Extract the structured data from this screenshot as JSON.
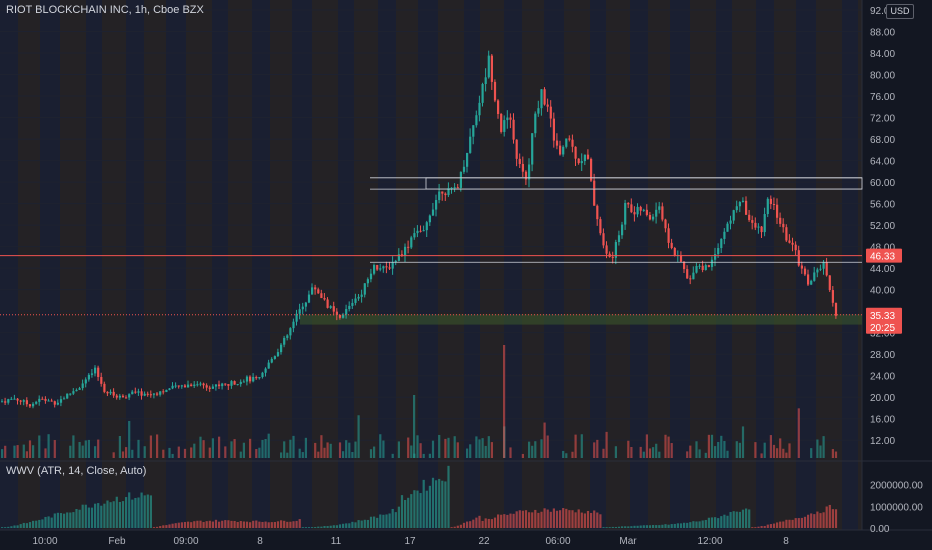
{
  "header": {
    "symbol_title": "RIOT BLOCKCHAIN INC, 1h, Cboe BZX",
    "currency": "USD"
  },
  "indicator": {
    "title": "WWV (ATR, 14, Close, Auto)"
  },
  "colors": {
    "background": "#131722",
    "up": "#26a69a",
    "down": "#ef5350",
    "grid": "#1e2230",
    "stripe_a": "#2a3350",
    "stripe_b": "#4a3a2c",
    "level": "#d1d4dc"
  },
  "chart_data": {
    "type": "candlestick",
    "price_axis": {
      "ylim": [
        10,
        92
      ],
      "ticks": [
        "92.00",
        "88.00",
        "84.00",
        "80.00",
        "76.00",
        "72.00",
        "68.00",
        "64.00",
        "60.00",
        "56.00",
        "52.00",
        "48.00",
        "44.00",
        "40.00",
        "36.00",
        "32.00",
        "28.00",
        "24.00",
        "20.00",
        "16.00",
        "12.00"
      ]
    },
    "time_axis": [
      "10:00",
      "Feb",
      "09:00",
      "8",
      "11",
      "17",
      "22",
      "06:00",
      "Mar",
      "12:00",
      "8"
    ],
    "ohlc_points": [
      [
        0,
        19.2
      ],
      [
        14,
        19.8
      ],
      [
        28,
        18.6
      ],
      [
        40,
        19.6
      ],
      [
        55,
        19.0
      ],
      [
        68,
        20.6
      ],
      [
        80,
        22.2
      ],
      [
        94,
        25.0
      ],
      [
        104,
        21.0
      ],
      [
        118,
        20.0
      ],
      [
        132,
        20.8
      ],
      [
        148,
        20.5
      ],
      [
        162,
        21.2
      ],
      [
        178,
        22.0
      ],
      [
        195,
        22.6
      ],
      [
        210,
        22.0
      ],
      [
        228,
        22.4
      ],
      [
        244,
        23.4
      ],
      [
        258,
        23.2
      ],
      [
        270,
        27.0
      ],
      [
        285,
        31.0
      ],
      [
        298,
        36.0
      ],
      [
        313,
        40.6
      ],
      [
        328,
        36.8
      ],
      [
        338,
        34.2
      ],
      [
        352,
        38.0
      ],
      [
        362,
        40.0
      ],
      [
        372,
        44.6
      ],
      [
        384,
        43.6
      ],
      [
        396,
        46.0
      ],
      [
        406,
        48.0
      ],
      [
        414,
        51.4
      ],
      [
        422,
        50.0
      ],
      [
        430,
        55.0
      ],
      [
        440,
        58.8
      ],
      [
        450,
        58.0
      ],
      [
        458,
        60.0
      ],
      [
        466,
        66.0
      ],
      [
        474,
        72.0
      ],
      [
        482,
        78.0
      ],
      [
        488,
        83.0
      ],
      [
        494,
        76.0
      ],
      [
        500,
        70.0
      ],
      [
        508,
        72.0
      ],
      [
        514,
        66.0
      ],
      [
        520,
        62.0
      ],
      [
        526,
        60.0
      ],
      [
        532,
        70.0
      ],
      [
        540,
        77.0
      ],
      [
        546,
        74.0
      ],
      [
        552,
        69.0
      ],
      [
        560,
        64.0
      ],
      [
        566,
        69.0
      ],
      [
        572,
        66.0
      ],
      [
        578,
        64.0
      ],
      [
        586,
        65.0
      ],
      [
        592,
        57.0
      ],
      [
        598,
        52.0
      ],
      [
        604,
        46.5
      ],
      [
        612,
        46.0
      ],
      [
        620,
        52.0
      ],
      [
        626,
        57.0
      ],
      [
        632,
        54.0
      ],
      [
        640,
        55.0
      ],
      [
        648,
        53.0
      ],
      [
        658,
        56.0
      ],
      [
        664,
        51.0
      ],
      [
        672,
        47.0
      ],
      [
        680,
        45.0
      ],
      [
        688,
        41.0
      ],
      [
        694,
        45.0
      ],
      [
        702,
        44.0
      ],
      [
        708,
        44.5
      ],
      [
        716,
        48.0
      ],
      [
        724,
        51.0
      ],
      [
        732,
        54.0
      ],
      [
        738,
        57.0
      ],
      [
        744,
        55.0
      ],
      [
        750,
        52.0
      ],
      [
        760,
        51.0
      ],
      [
        768,
        57.0
      ],
      [
        776,
        54.0
      ],
      [
        784,
        50.0
      ],
      [
        792,
        48.0
      ],
      [
        800,
        44.0
      ],
      [
        808,
        41.0
      ],
      [
        814,
        43.0
      ],
      [
        822,
        45.0
      ],
      [
        828,
        40.0
      ],
      [
        834,
        35.5
      ]
    ],
    "levels": [
      {
        "price": 46.33,
        "kind": "price-line",
        "label": "46.33",
        "color": "#ef5350"
      },
      {
        "price": 35.33,
        "kind": "dotted",
        "label": "35.33",
        "color": "#ef5350"
      },
      {
        "price": 60.8,
        "kind": "hline",
        "color": "#d1d4dc"
      },
      {
        "price": 58.7,
        "kind": "hline",
        "color": "#d1d4dc"
      },
      {
        "price": 45.1,
        "kind": "hline",
        "color": "#d1d4dc"
      }
    ],
    "countdown_label": "20:25",
    "indicator_axis": {
      "ylim": [
        0,
        2900000
      ],
      "ticks": [
        "2000000.00",
        "1000000.00",
        "0.00"
      ]
    }
  }
}
